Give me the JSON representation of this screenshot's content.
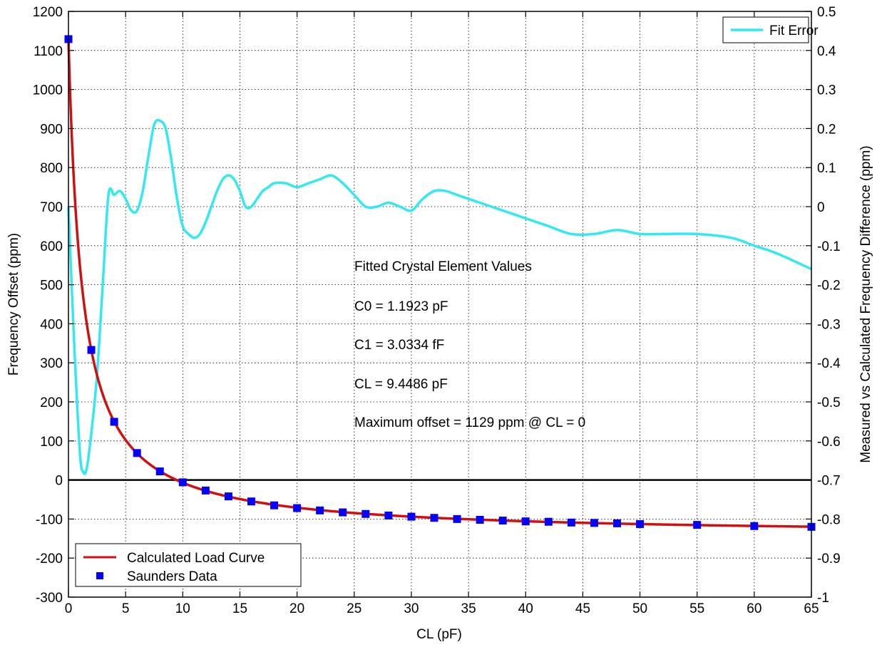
{
  "chart_data": {
    "type": "line",
    "xlabel": "CL (pF)",
    "ylabel_left": "Frequency Offset (ppm)",
    "ylabel_right": "Measured vs Calculated Frequency Difference (ppm)",
    "xlim": [
      0,
      65
    ],
    "ylim_left": [
      -300,
      1200
    ],
    "ylim_right": [
      -1,
      0.5
    ],
    "x_ticks": [
      0,
      5,
      10,
      15,
      20,
      25,
      30,
      35,
      40,
      45,
      50,
      55,
      60,
      65
    ],
    "y_left_ticks": [
      -300,
      -200,
      -100,
      0,
      100,
      200,
      300,
      400,
      500,
      600,
      700,
      800,
      900,
      1000,
      1100,
      1200
    ],
    "y_right_ticks": [
      "-1",
      "-0.9",
      "-0.8",
      "-0.7",
      "-0.6",
      "-0.5",
      "-0.4",
      "-0.3",
      "-0.2",
      "-0.1",
      "0",
      "0.1",
      "0.2",
      "0.3",
      "0.4",
      "0.5"
    ],
    "grid": true,
    "zero_line": 0,
    "colors": {
      "load_curve": "#d01010",
      "saunders": "#0000ff",
      "fit_error": "#33e8f0"
    },
    "series": [
      {
        "name": "Calculated Load Curve",
        "axis": "left",
        "style": "line",
        "params": {
          "C0": 1.1923,
          "C1": 3.0334,
          "CL": 9.4486
        }
      },
      {
        "name": "Saunders Data",
        "axis": "left",
        "style": "markers",
        "x": [
          0,
          2,
          4,
          6,
          8,
          10,
          12,
          14,
          16,
          18,
          20,
          22,
          24,
          26,
          28,
          30,
          32,
          34,
          36,
          38,
          40,
          42,
          44,
          46,
          48,
          50,
          55,
          60,
          65
        ],
        "y": [
          1129,
          333,
          149,
          69,
          22,
          -6,
          -27,
          -42,
          -55,
          -65,
          -72,
          -78,
          -83,
          -87,
          -91,
          -94,
          -97,
          -100,
          -102,
          -104,
          -106,
          -107,
          -109,
          -110,
          -111,
          -113,
          -115,
          -118,
          -120
        ]
      },
      {
        "name": "Fit Error",
        "axis": "right",
        "style": "line",
        "x": [
          0,
          0.5,
          1,
          1.3,
          1.6,
          2,
          2.5,
          3,
          3.5,
          4,
          4.5,
          5,
          5.5,
          6,
          6.5,
          7,
          7.5,
          8,
          8.5,
          9,
          9.5,
          10,
          10.5,
          11,
          11.5,
          12,
          12.5,
          13,
          13.5,
          14,
          14.5,
          15,
          15.5,
          16,
          16.5,
          17,
          17.5,
          18,
          19,
          20,
          21,
          22,
          23,
          24,
          25,
          26,
          27,
          28,
          29,
          30,
          31,
          32,
          33,
          34,
          36,
          38,
          40,
          42,
          44,
          46,
          48,
          50,
          52,
          55,
          58,
          60,
          62,
          65
        ],
        "y": [
          0,
          -0.35,
          -0.63,
          -0.68,
          -0.67,
          -0.58,
          -0.43,
          -0.2,
          0.03,
          0.03,
          0.04,
          0.02,
          -0.01,
          -0.01,
          0.04,
          0.13,
          0.21,
          0.22,
          0.2,
          0.12,
          0.02,
          -0.05,
          -0.07,
          -0.08,
          -0.07,
          -0.04,
          0.0,
          0.04,
          0.07,
          0.08,
          0.07,
          0.04,
          0.0,
          0.0,
          0.02,
          0.04,
          0.05,
          0.06,
          0.06,
          0.05,
          0.06,
          0.07,
          0.08,
          0.06,
          0.03,
          0.0,
          0.0,
          0.01,
          0.0,
          -0.01,
          0.02,
          0.04,
          0.04,
          0.03,
          0.01,
          -0.01,
          -0.03,
          -0.05,
          -0.07,
          -0.07,
          -0.06,
          -0.07,
          -0.07,
          -0.07,
          -0.08,
          -0.1,
          -0.12,
          -0.16
        ]
      }
    ],
    "annotations": [
      "Fitted Crystal Element Values",
      "C0 = 1.1923 pF",
      "C1 = 3.0334 fF",
      "CL = 9.4486   pF",
      "Maximum offset = 1129 ppm @ CL = 0"
    ],
    "legend_left": {
      "position": "bottom-left",
      "entries": [
        "Calculated Load Curve",
        "Saunders Data"
      ]
    },
    "legend_right": {
      "position": "top-right",
      "entries": [
        "Fit Error"
      ]
    }
  }
}
